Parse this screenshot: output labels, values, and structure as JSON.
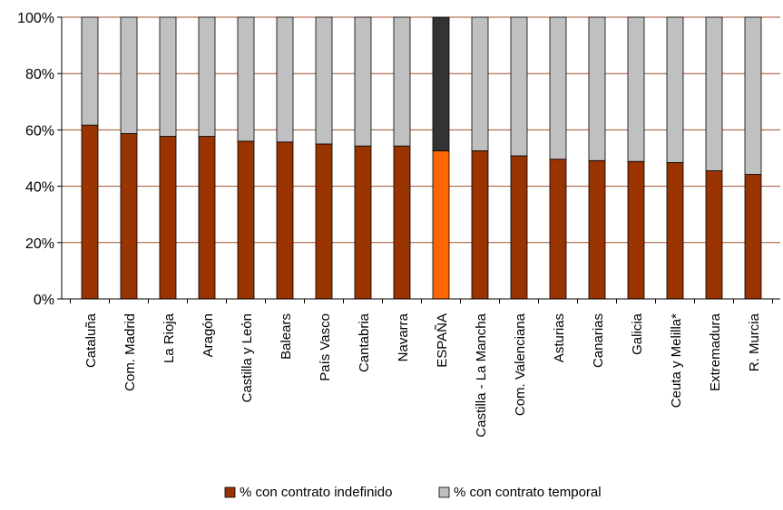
{
  "chart_data": {
    "type": "bar",
    "stacked": true,
    "percent_stacked": true,
    "categories": [
      "Cataluña",
      "Com. Madrid",
      "La Rioja",
      "Aragón",
      "Castilla y León",
      "Balears",
      "País Vasco",
      "Cantabria",
      "Navarra",
      "ESPAÑA",
      "Castilla - La Mancha",
      "Com. Valenciana",
      "Asturias",
      "Canarias",
      "Galicia",
      "Ceuta y Melilla*",
      "Extremadura",
      "R. Murcia"
    ],
    "highlight_category": "ESPAÑA",
    "series": [
      {
        "name": "% con contrato indefinido",
        "values": [
          61.7,
          58.7,
          57.7,
          57.7,
          56.0,
          55.7,
          55.0,
          54.3,
          54.3,
          52.6,
          52.6,
          50.8,
          49.6,
          49.1,
          48.8,
          48.4,
          45.5,
          44.2
        ],
        "color": "#993300",
        "highlight_color": "#ff6600"
      },
      {
        "name": "% con contrato temporal",
        "values": [
          38.3,
          41.3,
          42.3,
          42.3,
          44.0,
          44.3,
          45.0,
          45.7,
          45.7,
          47.4,
          47.4,
          49.2,
          50.4,
          50.9,
          51.2,
          51.6,
          54.5,
          55.8
        ],
        "color": "#c0c0c0",
        "highlight_color": "#333333"
      }
    ],
    "ylim": [
      0,
      100
    ],
    "yticks": [
      "0%",
      "20%",
      "40%",
      "60%",
      "80%",
      "100%"
    ],
    "grid": true,
    "grid_color": "#a0522d",
    "legend_position": "bottom",
    "title": "",
    "xlabel": "",
    "ylabel": ""
  }
}
